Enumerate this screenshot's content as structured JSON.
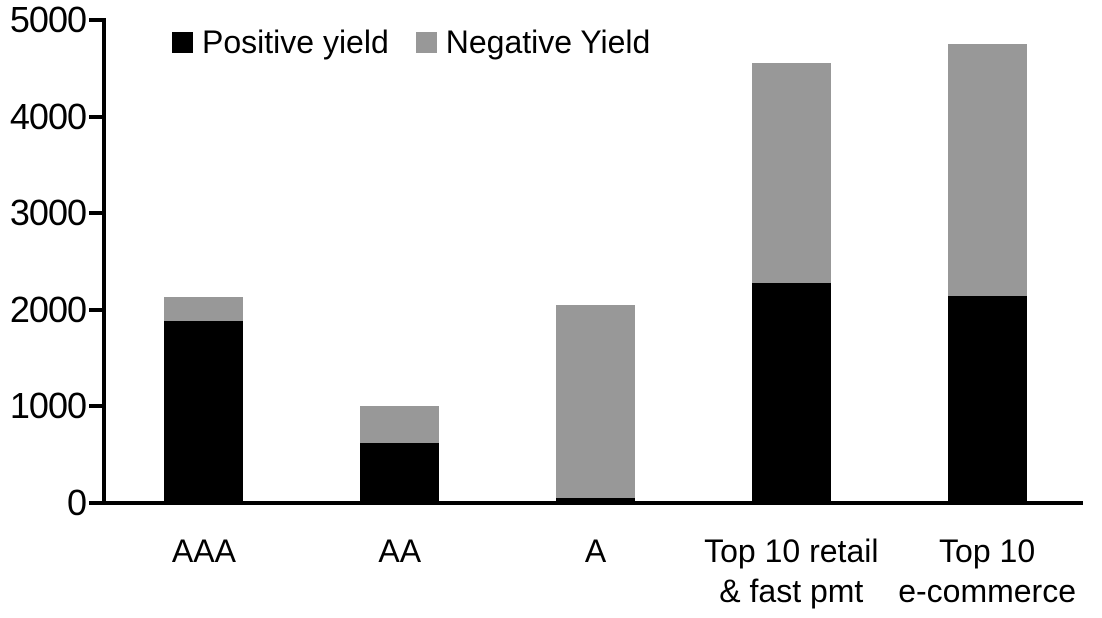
{
  "chart_data": {
    "type": "bar",
    "stacked": true,
    "title": "",
    "xlabel": "",
    "ylabel": "",
    "categories": [
      "AAA",
      "AA",
      "A",
      "Top 10 retail\n& fast pmt",
      "Top 10\ne-commerce"
    ],
    "series": [
      {
        "name": "Positive yield",
        "color": "#000000",
        "values": [
          1880,
          620,
          50,
          2280,
          2140
        ]
      },
      {
        "name": "Negative Yield",
        "color": "#989898",
        "values": [
          250,
          380,
          2000,
          2270,
          2610
        ]
      }
    ],
    "totals": [
      2130,
      1000,
      2050,
      4550,
      4750
    ],
    "ylim": [
      0,
      5000
    ],
    "yticks": [
      0,
      1000,
      2000,
      3000,
      4000,
      5000
    ],
    "grid": false,
    "legend_position": "top-inside-left"
  },
  "colors": {
    "axis": "#000000",
    "background": "#ffffff",
    "positive": "#000000",
    "negative": "#989898"
  }
}
